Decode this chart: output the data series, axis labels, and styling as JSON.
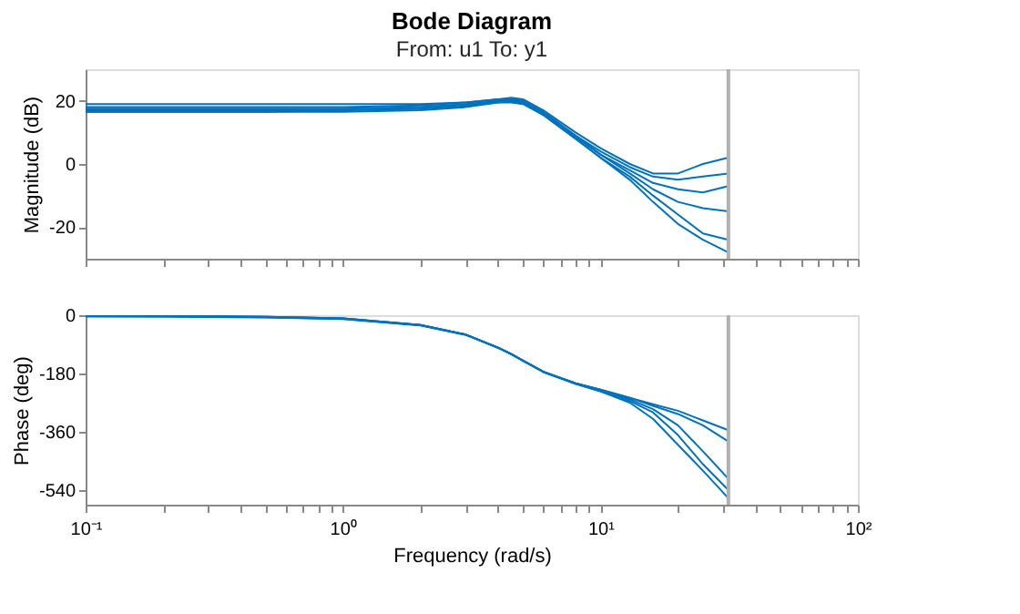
{
  "chart_data": [
    {
      "type": "line",
      "title": "Bode Diagram",
      "subtitle": "From: u1  To: y1",
      "ylabel": "Magnitude (dB)",
      "log": "x",
      "tick_labels": "y",
      "x": [
        0.1,
        0.2,
        0.5,
        1,
        2,
        3,
        4,
        4.5,
        5,
        6,
        8,
        10,
        13,
        16,
        20,
        25,
        31.4
      ],
      "series": [
        {
          "color": "#0072bd",
          "values": [
            19,
            19,
            19,
            19,
            19,
            19.5,
            20.5,
            21,
            20.5,
            17,
            10,
            5,
            0,
            -3,
            -3,
            0,
            2
          ]
        },
        {
          "color": "#0072bd",
          "values": [
            18,
            18,
            18,
            18,
            18.5,
            19.5,
            20.5,
            20.5,
            20,
            16.5,
            9,
            4,
            -1,
            -4,
            -5,
            -4,
            -3
          ]
        },
        {
          "color": "#0072bd",
          "values": [
            17.5,
            17.5,
            17.5,
            17.5,
            18,
            19,
            20,
            20.5,
            20,
            16,
            9,
            3,
            -2,
            -6,
            -8,
            -9,
            -7
          ]
        },
        {
          "color": "#0072bd",
          "values": [
            17,
            17,
            17,
            17,
            17.5,
            18.5,
            20,
            20,
            19.5,
            16,
            8.5,
            3,
            -3,
            -8,
            -12,
            -14,
            -15
          ]
        },
        {
          "color": "#0072bd",
          "values": [
            16.5,
            16.5,
            16.5,
            17,
            17.5,
            18.5,
            19.5,
            20,
            19.5,
            15.5,
            8,
            2,
            -4,
            -10,
            -16,
            -22,
            -24
          ]
        },
        {
          "color": "#0072bd",
          "values": [
            16.5,
            16.5,
            16.5,
            16.5,
            17,
            18,
            19.5,
            19.5,
            19,
            15.5,
            8,
            2,
            -5,
            -12,
            -19,
            -24,
            -28
          ]
        }
      ],
      "xlim": [
        0.1,
        100
      ],
      "xticks": [
        {
          "value": 0.1,
          "label": null
        },
        {
          "value": 0.2,
          "label": null
        },
        {
          "value": 0.3,
          "label": null
        },
        {
          "value": 0.4,
          "label": null
        },
        {
          "value": 0.5,
          "label": null
        },
        {
          "value": 0.6,
          "label": null
        },
        {
          "value": 0.7,
          "label": null
        },
        {
          "value": 0.8,
          "label": null
        },
        {
          "value": 0.9,
          "label": null
        },
        {
          "value": 1,
          "label": null
        },
        {
          "value": 2,
          "label": null
        },
        {
          "value": 3,
          "label": null
        },
        {
          "value": 4,
          "label": null
        },
        {
          "value": 5,
          "label": null
        },
        {
          "value": 6,
          "label": null
        },
        {
          "value": 7,
          "label": null
        },
        {
          "value": 8,
          "label": null
        },
        {
          "value": 9,
          "label": null
        },
        {
          "value": 10,
          "label": null
        },
        {
          "value": 20,
          "label": null
        },
        {
          "value": 30,
          "label": null
        },
        {
          "value": 40,
          "label": null
        },
        {
          "value": 50,
          "label": null
        },
        {
          "value": 60,
          "label": null
        },
        {
          "value": 70,
          "label": null
        },
        {
          "value": 80,
          "label": null
        },
        {
          "value": 90,
          "label": null
        },
        {
          "value": 100,
          "label": null
        }
      ],
      "ylim": [
        -30,
        30
      ],
      "yticks": [
        -20,
        0,
        20
      ],
      "ref_lines": [
        {
          "axis": "x",
          "value": 31.4,
          "color": "#b0b0b0"
        }
      ]
    },
    {
      "type": "line",
      "xlabel": "Frequency (rad/s)",
      "ylabel": "Phase (deg)",
      "log": "x",
      "x": [
        0.1,
        0.2,
        0.5,
        1,
        2,
        3,
        4,
        4.5,
        5,
        6,
        8,
        10,
        13,
        16,
        20,
        25,
        31.4
      ],
      "series": [
        {
          "color": "#0072bd",
          "values": [
            0,
            -2,
            -5,
            -10,
            -30,
            -60,
            -100,
            -120,
            -140,
            -175,
            -210,
            -230,
            -255,
            -275,
            -295,
            -325,
            -355
          ]
        },
        {
          "color": "#0072bd",
          "values": [
            0,
            -2,
            -5,
            -10,
            -30,
            -60,
            -100,
            -120,
            -140,
            -175,
            -210,
            -230,
            -255,
            -280,
            -305,
            -340,
            -390
          ]
        },
        {
          "color": "#0072bd",
          "values": [
            -2,
            -3,
            -6,
            -11,
            -31,
            -60,
            -100,
            -120,
            -140,
            -175,
            -210,
            -232,
            -260,
            -290,
            -340,
            -420,
            -505
          ]
        },
        {
          "color": "#0072bd",
          "values": [
            0,
            -2,
            -5,
            -10,
            -30,
            -60,
            -100,
            -120,
            -140,
            -175,
            -212,
            -235,
            -265,
            -300,
            -370,
            -460,
            -540
          ]
        },
        {
          "color": "#0072bd",
          "values": [
            -4,
            -5,
            -7,
            -12,
            -32,
            -61,
            -101,
            -120,
            -140,
            -175,
            -212,
            -235,
            -270,
            -320,
            -400,
            -480,
            -565
          ]
        }
      ],
      "xlim": [
        0.1,
        100
      ],
      "xticks": [
        {
          "value": 0.1,
          "label": "10⁻¹"
        },
        {
          "value": 0.2,
          "label": null
        },
        {
          "value": 0.3,
          "label": null
        },
        {
          "value": 0.4,
          "label": null
        },
        {
          "value": 0.5,
          "label": null
        },
        {
          "value": 0.6,
          "label": null
        },
        {
          "value": 0.7,
          "label": null
        },
        {
          "value": 0.8,
          "label": null
        },
        {
          "value": 0.9,
          "label": null
        },
        {
          "value": 1,
          "label": "10⁰"
        },
        {
          "value": 2,
          "label": null
        },
        {
          "value": 3,
          "label": null
        },
        {
          "value": 4,
          "label": null
        },
        {
          "value": 5,
          "label": null
        },
        {
          "value": 6,
          "label": null
        },
        {
          "value": 7,
          "label": null
        },
        {
          "value": 8,
          "label": null
        },
        {
          "value": 9,
          "label": null
        },
        {
          "value": 10,
          "label": "10¹"
        },
        {
          "value": 20,
          "label": null
        },
        {
          "value": 30,
          "label": null
        },
        {
          "value": 40,
          "label": null
        },
        {
          "value": 50,
          "label": null
        },
        {
          "value": 60,
          "label": null
        },
        {
          "value": 70,
          "label": null
        },
        {
          "value": 80,
          "label": null
        },
        {
          "value": 90,
          "label": null
        },
        {
          "value": 100,
          "label": "10²"
        }
      ],
      "ylim": [
        -585,
        0
      ],
      "yticks": [
        -540,
        -360,
        -180,
        0
      ],
      "ref_lines": [
        {
          "axis": "x",
          "value": 31.4,
          "color": "#b0b0b0"
        }
      ]
    }
  ]
}
